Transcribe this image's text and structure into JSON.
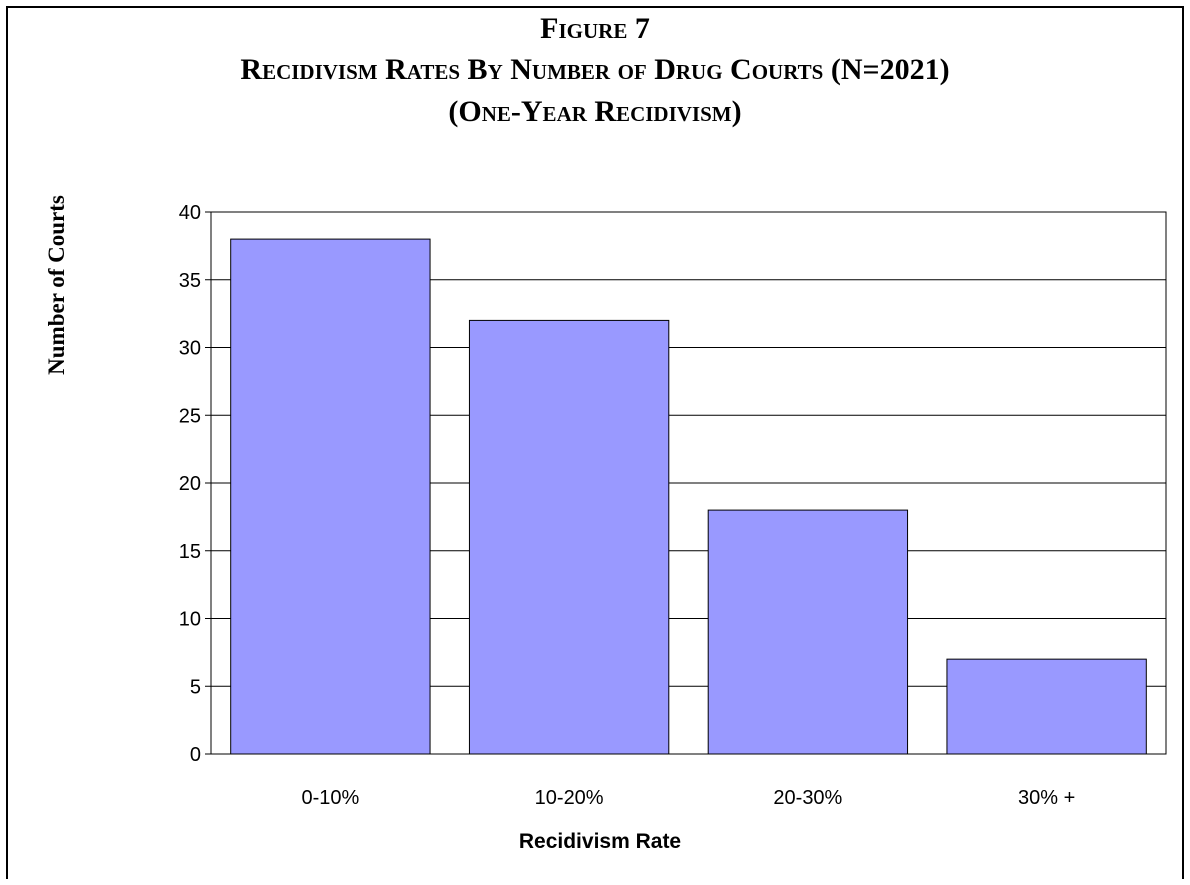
{
  "figure": {
    "line1": "Figure 7",
    "line2": "Recidivism Rates By Number of Drug Courts (N=2021)",
    "line3": "(One-Year Recidivism)"
  },
  "chart_data": {
    "type": "bar",
    "title": "Figure 7 Recidivism Rates By Number of Drug Courts (N=2021) (One-Year Recidivism)",
    "xlabel": "Recidivism Rate",
    "ylabel": "Number of Courts",
    "categories": [
      "0-10%",
      "10-20%",
      "20-30%",
      "30% +"
    ],
    "values": [
      38,
      32,
      18,
      7
    ],
    "ylim": [
      0,
      40
    ],
    "yticks": [
      0,
      5,
      10,
      15,
      20,
      25,
      30,
      35,
      40
    ],
    "grid": true,
    "legend": "none",
    "bar_color": "#9999ff"
  }
}
